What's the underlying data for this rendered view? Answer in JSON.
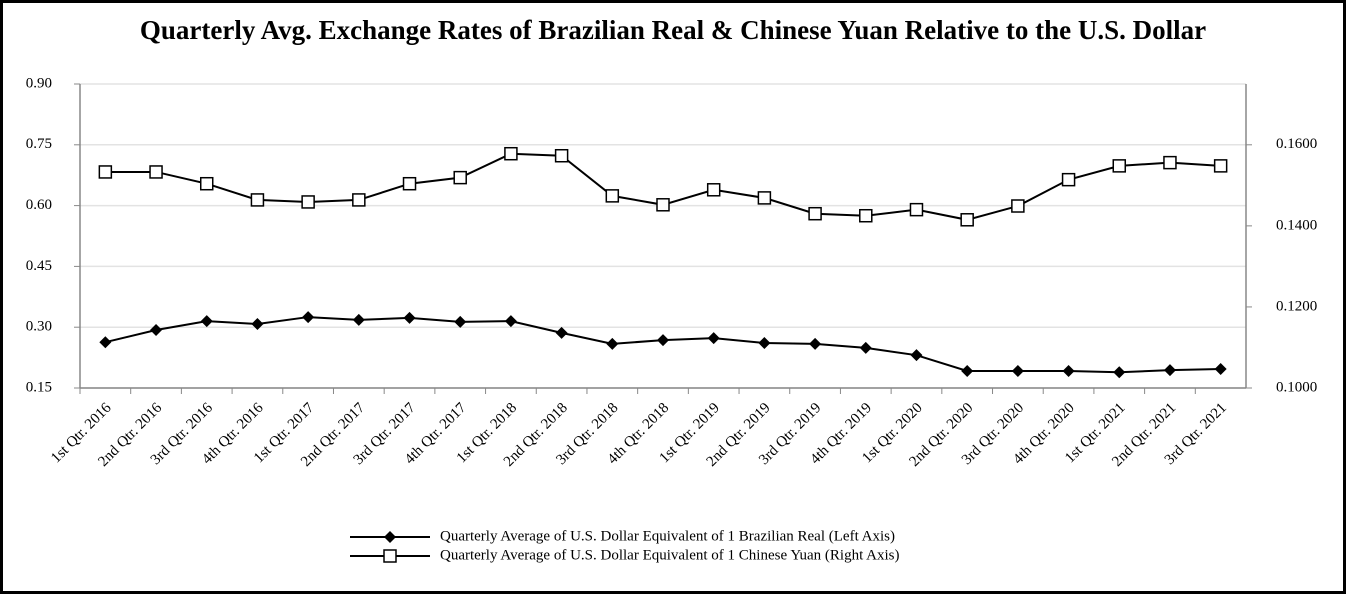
{
  "chart_data": {
    "type": "line",
    "title": "Quarterly Avg. Exchange Rates of Brazilian Real & Chinese Yuan Relative to the U.S. Dollar",
    "categories": [
      "1st Qtr. 2016",
      "2nd Qtr. 2016",
      "3rd Qtr. 2016",
      "4th Qtr. 2016",
      "1st Qtr. 2017",
      "2nd Qtr. 2017",
      "3rd Qtr. 2017",
      "4th Qtr. 2017",
      "1st Qtr. 2018",
      "2nd Qtr. 2018",
      "3rd Qtr. 2018",
      "4th Qtr. 2018",
      "1st Qtr. 2019",
      "2nd Qtr. 2019",
      "3rd Qtr. 2019",
      "4th Qtr. 2019",
      "1st Qtr. 2020",
      "2nd Qtr. 2020",
      "3rd Qtr. 2020",
      "4th Qtr. 2020",
      "1st Qtr. 2021",
      "2nd Qtr. 2021",
      "3rd Qtr. 2021"
    ],
    "series": [
      {
        "name": "Quarterly Average of U.S. Dollar Equivalent of 1 Brazilian Real (Left Axis)",
        "color": "#000000",
        "marker": "diamond",
        "values": [
          0.263,
          0.293,
          0.315,
          0.308,
          0.325,
          0.318,
          0.323,
          0.313,
          0.315,
          0.286,
          0.259,
          0.268,
          0.273,
          0.261,
          0.259,
          0.249,
          0.231,
          0.192,
          0.192,
          0.192,
          0.189,
          0.194,
          0.197
        ]
      },
      {
        "name": "Quarterly Average of U.S. Dollar Equivalent of 1 Chinese Yuan (Right Axis)",
        "color": "#000000",
        "marker": "square",
        "axis": "y2",
        "values": [
          0.1533,
          0.1533,
          0.1504,
          0.1464,
          0.1459,
          0.1464,
          0.1504,
          0.1519,
          0.1578,
          0.1573,
          0.1474,
          0.1452,
          0.1489,
          0.1469,
          0.143,
          0.1425,
          0.144,
          0.1415,
          0.1449,
          0.1514,
          0.1548,
          0.1556,
          0.1548
        ]
      }
    ],
    "ylim": [
      0.15,
      0.9
    ],
    "yticks": [
      0.15,
      {
        "value": 0.3,
        "label": "0.30"
      },
      0.45,
      {
        "value": 0.6,
        "label": "0.60"
      },
      0.75,
      {
        "value": 0.9,
        "label": "0.90"
      }
    ],
    "y2lim": [
      0.1,
      0.175
    ],
    "y2ticks": [
      {
        "value": 0.1,
        "label": "0.1000"
      },
      {
        "value": 0.12,
        "label": "0.1200"
      },
      {
        "value": 0.14,
        "label": "0.1400"
      },
      {
        "value": 0.16,
        "label": "0.1600"
      }
    ],
    "grid": true
  }
}
